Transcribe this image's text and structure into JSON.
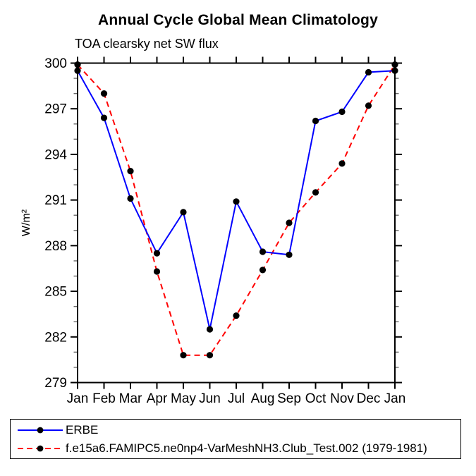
{
  "chart_data": {
    "type": "line",
    "title": "Annual Cycle Global Mean Climatology",
    "subtitle": "TOA clearsky net SW flux",
    "ylabel": "W/m²",
    "xlabel": "",
    "x": [
      "Jan",
      "Feb",
      "Mar",
      "Apr",
      "May",
      "Jun",
      "Jul",
      "Aug",
      "Sep",
      "Oct",
      "Nov",
      "Dec",
      "Jan"
    ],
    "ylim": [
      279,
      300
    ],
    "ytick_major_step": 3,
    "ytick_minor_step": 1,
    "grid": false,
    "legend_position": "bottom-left-box",
    "axis_color": "#000000",
    "marker_color": "#000000",
    "series": [
      {
        "name": "ERBE",
        "color": "#0000ff",
        "style": "solid",
        "marker": "filled-circle",
        "values": [
          299.5,
          296.4,
          291.1,
          287.5,
          290.2,
          282.5,
          290.9,
          287.6,
          287.4,
          296.2,
          296.8,
          299.4,
          299.5
        ]
      },
      {
        "name": "f.e15a6.FAMIPC5.ne0np4-VarMeshNH3.Club_Test.002 (1979-1981)",
        "color": "#ff0000",
        "style": "dashed",
        "marker": "filled-circle",
        "values": [
          299.9,
          298.0,
          292.9,
          286.3,
          280.8,
          280.8,
          283.4,
          286.4,
          289.5,
          291.5,
          293.4,
          297.2,
          299.9
        ]
      }
    ]
  }
}
